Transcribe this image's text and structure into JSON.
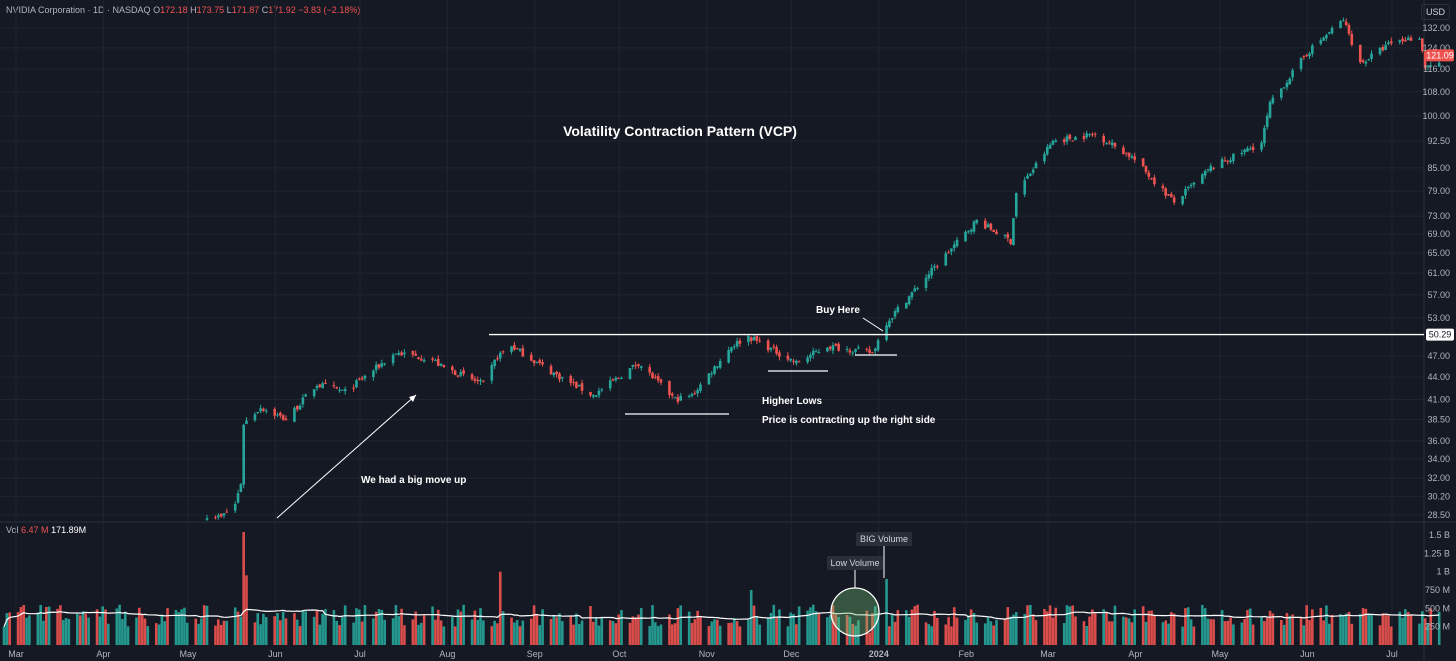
{
  "header": {
    "symbol": "NVIDIA Corporation · 1D · NASDAQ",
    "open_label": "O",
    "open": "172.18",
    "high_label": "H",
    "high": "173.75",
    "low_label": "L",
    "low": "171.87",
    "close_label": "C",
    "close": "171.92",
    "change": "−3.83 (−2.18%)"
  },
  "currency": "USD",
  "volume_header": {
    "label": "Vol",
    "value1": "6.47 M",
    "value2": "171.89M"
  },
  "colors": {
    "background": "#151924",
    "up": "#26a69a",
    "down": "#ef5350",
    "annotation": "#ffffff",
    "grid": "#1f2431"
  },
  "chart_data": {
    "type": "candlestick",
    "title": "Volatility Contraction Pattern (VCP)",
    "x_ticks": [
      "Mar",
      "Apr",
      "May",
      "Jun",
      "Jul",
      "Aug",
      "Sep",
      "Oct",
      "Nov",
      "Dec",
      "2024",
      "Feb",
      "Mar",
      "Apr",
      "May",
      "Jun",
      "Jul"
    ],
    "y_scale": "log",
    "y_ticks": [
      "132.00",
      "124.00",
      "116.00",
      "108.00",
      "100.00",
      "92.50",
      "85.00",
      "79.00",
      "73.00",
      "69.00",
      "65.00",
      "61.00",
      "57.00",
      "53.00",
      "47.00",
      "44.00",
      "41.00",
      "38.50",
      "36.00",
      "34.00",
      "32.00",
      "30.20",
      "28.50"
    ],
    "price_labels": {
      "last": "121.09",
      "level": "50.29"
    },
    "volume_ticks": [
      "1.5 B",
      "1.25 B",
      "1 B",
      "750 M",
      "500 M",
      "250 M"
    ],
    "price_series": {
      "description": "approximate daily closes",
      "x": [
        "2023-05-12",
        "2023-05-17",
        "2023-05-22",
        "2023-05-24",
        "2023-05-25",
        "2023-05-31",
        "2023-06-09",
        "2023-06-20",
        "2023-06-30",
        "2023-07-18",
        "2023-07-31",
        "2023-08-03",
        "2023-08-18",
        "2023-08-23",
        "2023-08-28",
        "2023-09-12",
        "2023-09-26",
        "2023-10-12",
        "2023-10-25",
        "2023-10-31",
        "2023-11-14",
        "2023-11-20",
        "2023-12-07",
        "2023-12-18",
        "2024-01-03",
        "2024-01-08",
        "2024-01-24",
        "2024-02-09",
        "2024-02-21",
        "2024-02-23",
        "2024-03-07",
        "2024-03-22",
        "2024-04-04",
        "2024-04-19",
        "2024-05-02",
        "2024-05-20",
        "2024-05-23",
        "2024-06-05",
        "2024-06-18",
        "2024-06-24",
        "2024-07-05",
        "2024-07-15",
        "2024-07-17",
        "2024-07-19"
      ],
      "y": [
        28.5,
        28.3,
        29.5,
        31.5,
        38.0,
        40.0,
        38.5,
        43.0,
        42.0,
        47.5,
        46.5,
        45.5,
        43.0,
        47.0,
        48.5,
        44.5,
        41.5,
        46.0,
        41.0,
        41.5,
        48.5,
        50.0,
        46.0,
        48.5,
        47.5,
        52.3,
        61.5,
        72.0,
        67.5,
        78.5,
        92.5,
        94.5,
        88.0,
        76.2,
        85.0,
        92.0,
        103.8,
        122.0,
        135.5,
        118.0,
        126.0,
        128.5,
        117.0,
        117.5
      ]
    },
    "volume_series": {
      "description": "approximate daily volume highlights (M)",
      "x": [
        "2023-05-25",
        "2023-05-26",
        "2023-08-24",
        "2023-11-21",
        "2024-01-02",
        "2024-01-08"
      ],
      "y": [
        1540,
        950,
        1000,
        750,
        170,
        900
      ]
    },
    "annotations": [
      {
        "name": "breakout-line",
        "text": ""
      },
      {
        "name": "big-move",
        "text": "We had a big move up"
      },
      {
        "name": "higher-lows",
        "text": "Higher Lows"
      },
      {
        "name": "contracting",
        "text": "Price is contracting up the right side"
      },
      {
        "name": "buy-here",
        "text": "Buy Here"
      },
      {
        "name": "low-volume",
        "text": "Low Volume"
      },
      {
        "name": "big-volume",
        "text": "BIG Volume"
      }
    ]
  }
}
